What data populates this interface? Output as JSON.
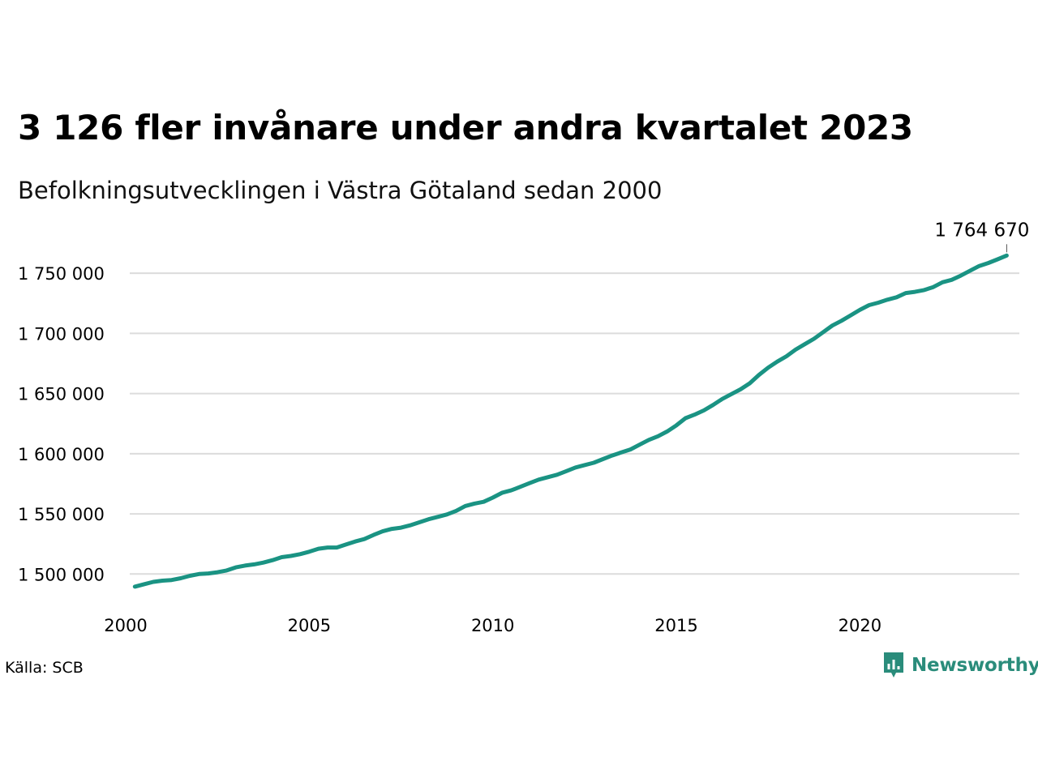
{
  "title": "3 126 fler invånare under andra kvartalet 2023",
  "subtitle": "Befolkningsutvecklingen i Västra Götaland sedan 2000",
  "source": "Källa: SCB",
  "brand": "Newsworthy",
  "colors": {
    "line": "#1a9383",
    "grid": "#dcdcdc",
    "brand": "#2a8c7b"
  },
  "chart_data": {
    "type": "line",
    "title": "3 126 fler invånare under andra kvartalet 2023",
    "subtitle": "Befolkningsutvecklingen i Västra Götaland sedan 2000",
    "xlabel": "",
    "ylabel": "",
    "xlim": [
      2000,
      2024.3
    ],
    "ylim": [
      1480000,
      1775000
    ],
    "x_ticks": [
      2000,
      2005,
      2010,
      2015,
      2020
    ],
    "x_tick_labels": [
      "2000",
      "2005",
      "2010",
      "2015",
      "2020"
    ],
    "y_ticks": [
      1500000,
      1550000,
      1600000,
      1650000,
      1700000,
      1750000
    ],
    "y_tick_labels": [
      "1 500 000",
      "1 550 000",
      "1 600 000",
      "1 650 000",
      "1 700 000",
      "1 750 000"
    ],
    "grid": true,
    "last_value_label": "1 764 670",
    "series": [
      {
        "values": [
          [
            2000.25,
            1489500
          ],
          [
            2000.5,
            1491500
          ],
          [
            2000.75,
            1493500
          ],
          [
            2001.0,
            1494500
          ],
          [
            2001.25,
            1495000
          ],
          [
            2001.5,
            1496500
          ],
          [
            2001.75,
            1498500
          ],
          [
            2002.0,
            1500000
          ],
          [
            2002.25,
            1500500
          ],
          [
            2002.5,
            1501500
          ],
          [
            2002.75,
            1503000
          ],
          [
            2003.0,
            1505500
          ],
          [
            2003.25,
            1507000
          ],
          [
            2003.5,
            1508000
          ],
          [
            2003.75,
            1509500
          ],
          [
            2004.0,
            1511500
          ],
          [
            2004.25,
            1514000
          ],
          [
            2004.5,
            1515000
          ],
          [
            2004.75,
            1516500
          ],
          [
            2005.0,
            1518500
          ],
          [
            2005.25,
            1521000
          ],
          [
            2005.5,
            1522000
          ],
          [
            2005.75,
            1522000
          ],
          [
            2006.0,
            1524500
          ],
          [
            2006.25,
            1527000
          ],
          [
            2006.5,
            1529000
          ],
          [
            2006.75,
            1532500
          ],
          [
            2007.0,
            1535500
          ],
          [
            2007.25,
            1537500
          ],
          [
            2007.5,
            1538500
          ],
          [
            2007.75,
            1540500
          ],
          [
            2008.0,
            1543000
          ],
          [
            2008.25,
            1545500
          ],
          [
            2008.5,
            1547500
          ],
          [
            2008.75,
            1549500
          ],
          [
            2009.0,
            1552500
          ],
          [
            2009.25,
            1556500
          ],
          [
            2009.5,
            1558500
          ],
          [
            2009.75,
            1560000
          ],
          [
            2010.0,
            1563500
          ],
          [
            2010.25,
            1567500
          ],
          [
            2010.5,
            1569500
          ],
          [
            2010.75,
            1572500
          ],
          [
            2011.0,
            1575500
          ],
          [
            2011.25,
            1578500
          ],
          [
            2011.5,
            1580500
          ],
          [
            2011.75,
            1582500
          ],
          [
            2012.0,
            1585500
          ],
          [
            2012.25,
            1588500
          ],
          [
            2012.5,
            1590500
          ],
          [
            2012.75,
            1592500
          ],
          [
            2013.0,
            1595500
          ],
          [
            2013.25,
            1598500
          ],
          [
            2013.5,
            1601000
          ],
          [
            2013.75,
            1603500
          ],
          [
            2014.0,
            1607500
          ],
          [
            2014.25,
            1611500
          ],
          [
            2014.5,
            1614500
          ],
          [
            2014.75,
            1618500
          ],
          [
            2015.0,
            1623500
          ],
          [
            2015.25,
            1629500
          ],
          [
            2015.5,
            1632500
          ],
          [
            2015.75,
            1636000
          ],
          [
            2016.0,
            1640500
          ],
          [
            2016.25,
            1645500
          ],
          [
            2016.5,
            1649500
          ],
          [
            2016.75,
            1653500
          ],
          [
            2017.0,
            1658500
          ],
          [
            2017.25,
            1665500
          ],
          [
            2017.5,
            1671500
          ],
          [
            2017.75,
            1676500
          ],
          [
            2018.0,
            1681000
          ],
          [
            2018.25,
            1686500
          ],
          [
            2018.5,
            1691000
          ],
          [
            2018.75,
            1695500
          ],
          [
            2019.0,
            1701000
          ],
          [
            2019.25,
            1706500
          ],
          [
            2019.5,
            1710500
          ],
          [
            2019.75,
            1715000
          ],
          [
            2020.0,
            1719500
          ],
          [
            2020.25,
            1723500
          ],
          [
            2020.5,
            1725500
          ],
          [
            2020.75,
            1728000
          ],
          [
            2021.0,
            1730000
          ],
          [
            2021.25,
            1733500
          ],
          [
            2021.5,
            1734500
          ],
          [
            2021.75,
            1736000
          ],
          [
            2022.0,
            1738500
          ],
          [
            2022.25,
            1742500
          ],
          [
            2022.5,
            1744500
          ],
          [
            2022.75,
            1748000
          ],
          [
            2023.0,
            1752000
          ],
          [
            2023.25,
            1756000
          ],
          [
            2023.5,
            1758500
          ],
          [
            2023.75,
            1761500
          ],
          [
            2024.0,
            1764670
          ]
        ]
      }
    ]
  }
}
